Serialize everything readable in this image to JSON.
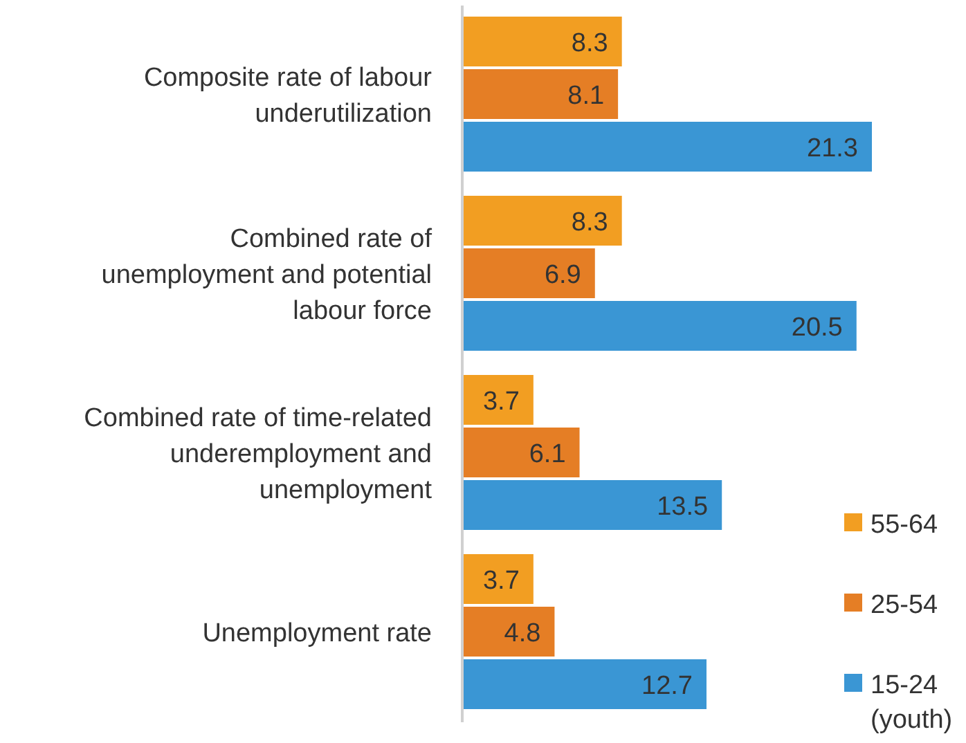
{
  "chart_data": {
    "type": "bar",
    "orientation": "horizontal",
    "categories": [
      "Composite rate of labour\nunderutilization",
      "Combined rate of\nunemployment and potential\nlabour force",
      "Combined rate of time-related\nunderemployment and\nunemployment",
      "Unemployment rate"
    ],
    "series": [
      {
        "name": "55-64",
        "color": "#f29e22",
        "values": [
          8.3,
          8.3,
          3.7,
          3.7
        ]
      },
      {
        "name": "25-54",
        "color": "#e57e25",
        "values": [
          8.1,
          6.9,
          6.1,
          4.8
        ]
      },
      {
        "name": "15-24\n(youth)",
        "color": "#3a96d4",
        "values": [
          21.3,
          20.5,
          13.5,
          12.7
        ]
      }
    ],
    "data_labels": true,
    "legend": "bottom right"
  }
}
